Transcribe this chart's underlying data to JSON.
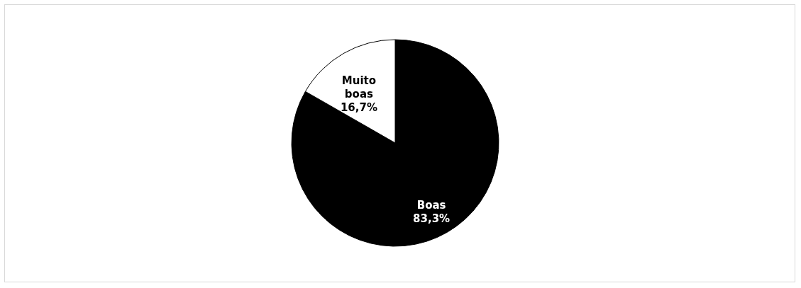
{
  "chart_data": {
    "type": "pie",
    "categories": [
      "Boas",
      "Muito boas"
    ],
    "values": [
      83.3,
      16.7
    ],
    "colors": [
      "#000000",
      "#ffffff"
    ],
    "value_labels": [
      "83,3%",
      "16,7%"
    ],
    "legend": false
  }
}
